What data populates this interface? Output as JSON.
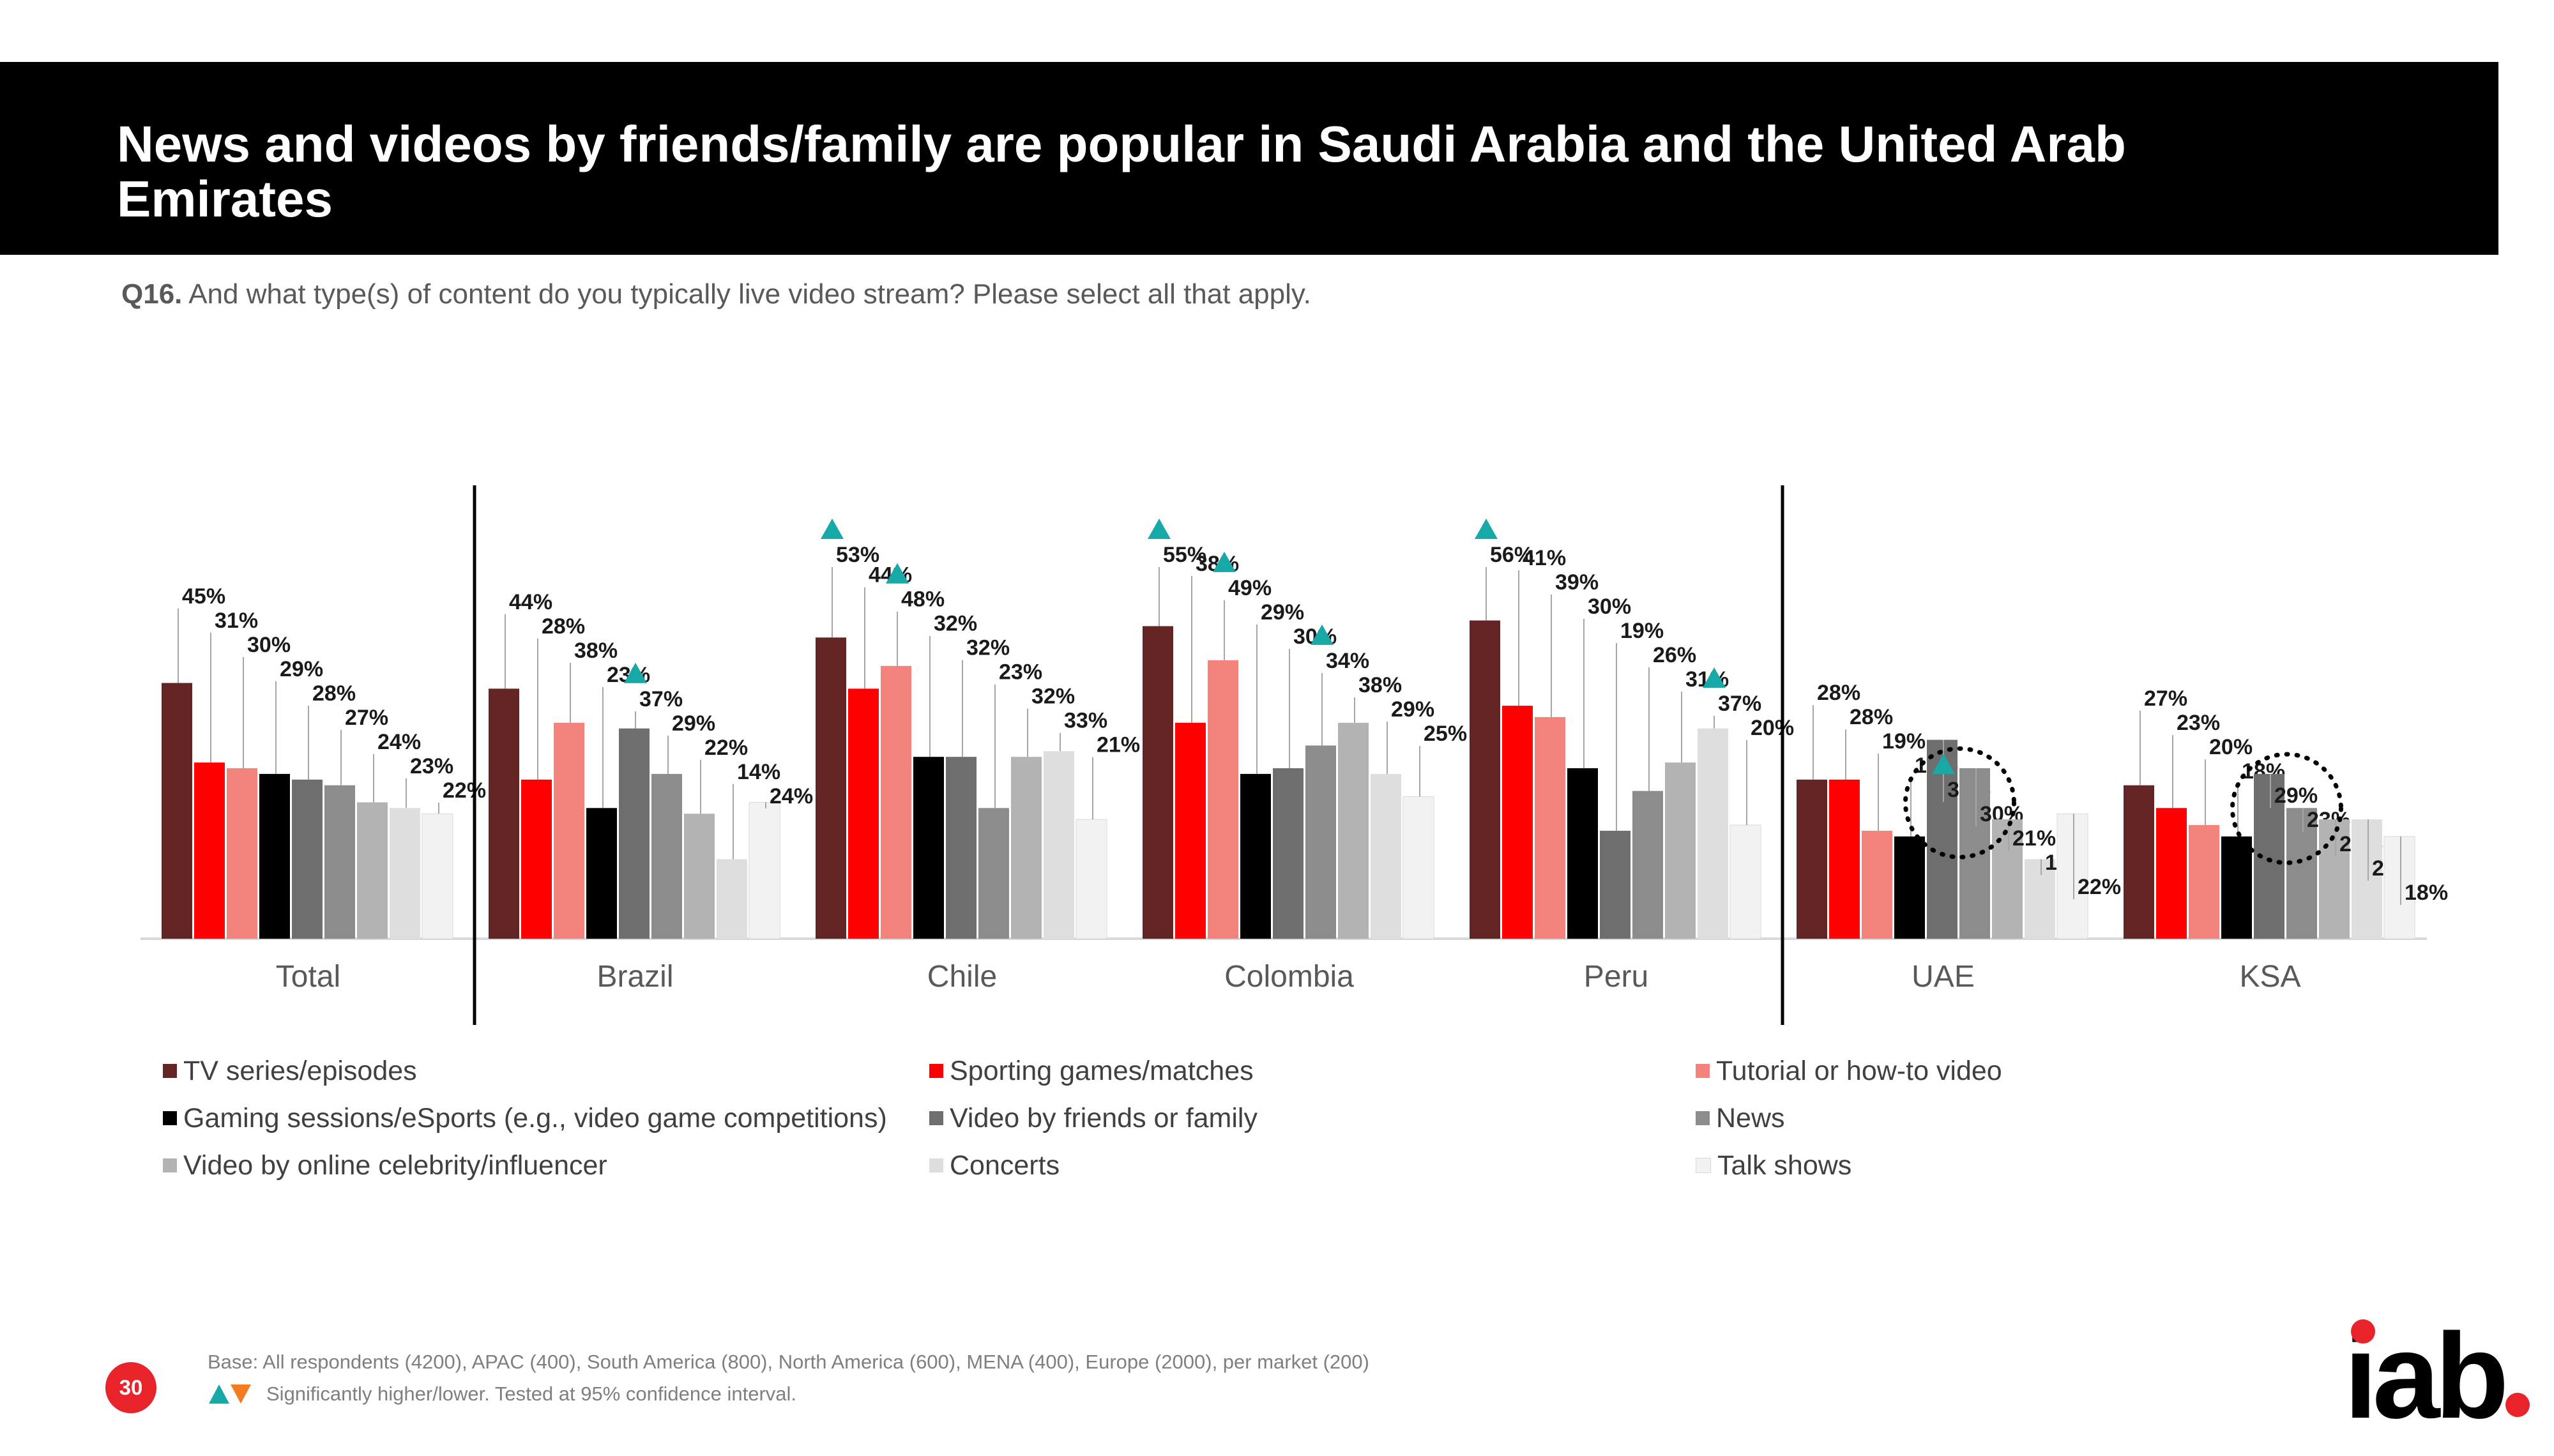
{
  "page": {
    "title": "News and videos by friends/family are popular in Saudi Arabia and the United Arab Emirates",
    "question_label": "Q16.",
    "question_text": "And what type(s) of content do you typically live video stream? Please select all that apply.",
    "base_note": "Base: All respondents (4200), APAC (400), South America (800), North America (600), MENA (400), Europe (2000), per market (200)",
    "sig_note": "Significantly higher/lower. Tested at 95% confidence interval.",
    "page_number": "30",
    "logo_text": "iab",
    "colors": {
      "accent_red": "#e8232a",
      "sig_higher": "#17a8a8",
      "sig_lower": "#f47b20"
    }
  },
  "chart_data": {
    "type": "bar",
    "title": "News and videos by friends/family are popular in Saudi Arabia and the United Arab Emirates",
    "xlabel": "",
    "ylabel": "",
    "ylim": [
      0,
      70
    ],
    "grid": false,
    "legend_position": "bottom",
    "categories": [
      "Total",
      "Brazil",
      "Chile",
      "Colombia",
      "Peru",
      "UAE",
      "KSA"
    ],
    "series": [
      {
        "name": "TV series/episodes",
        "color": "#632523",
        "values": [
          45,
          44,
          53,
          55,
          56,
          28,
          27
        ]
      },
      {
        "name": "Sporting games/matches",
        "color": "#ff0000",
        "values": [
          31,
          28,
          44,
          38,
          41,
          28,
          23
        ]
      },
      {
        "name": "Tutorial or how-to video",
        "color": "#f4837d",
        "values": [
          30,
          38,
          48,
          49,
          39,
          19,
          20
        ]
      },
      {
        "name": "Gaming sessions/eSports (e.g., video game competitions)",
        "color": "#000000",
        "values": [
          29,
          23,
          32,
          29,
          30,
          18,
          18
        ]
      },
      {
        "name": "Video by friends or family",
        "color": "#6e6e6e",
        "values": [
          28,
          37,
          32,
          30,
          19,
          35,
          29
        ]
      },
      {
        "name": "News",
        "color": "#8c8c8c",
        "values": [
          27,
          29,
          23,
          34,
          26,
          30,
          23
        ]
      },
      {
        "name": "Video by online celebrity/influencer",
        "color": "#b3b3b3",
        "values": [
          24,
          22,
          32,
          38,
          31,
          21,
          21
        ]
      },
      {
        "name": "Concerts",
        "color": "#dedede",
        "values": [
          23,
          14,
          33,
          29,
          37,
          14,
          21
        ]
      },
      {
        "name": "Talk shows",
        "color": "#f2f2f2",
        "values": [
          22,
          24,
          21,
          25,
          20,
          22,
          18
        ]
      }
    ],
    "significance_markers": [
      {
        "category": "Brazil",
        "series": "Video by friends or family",
        "direction": "higher"
      },
      {
        "category": "Chile",
        "series": "TV series/episodes",
        "direction": "higher"
      },
      {
        "category": "Chile",
        "series": "Tutorial or how-to video",
        "direction": "higher"
      },
      {
        "category": "Colombia",
        "series": "TV series/episodes",
        "direction": "higher"
      },
      {
        "category": "Colombia",
        "series": "Tutorial or how-to video",
        "direction": "higher"
      },
      {
        "category": "Colombia",
        "series": "News",
        "direction": "higher"
      },
      {
        "category": "Peru",
        "series": "TV series/episodes",
        "direction": "higher"
      },
      {
        "category": "Peru",
        "series": "Concerts",
        "direction": "higher"
      },
      {
        "category": "UAE",
        "series": "Video by friends or family",
        "direction": "higher"
      }
    ],
    "highlighted_circles": [
      {
        "category": "UAE",
        "series": [
          "Video by friends or family",
          "News"
        ]
      },
      {
        "category": "KSA",
        "series": [
          "Video by friends or family",
          "News"
        ]
      }
    ]
  }
}
